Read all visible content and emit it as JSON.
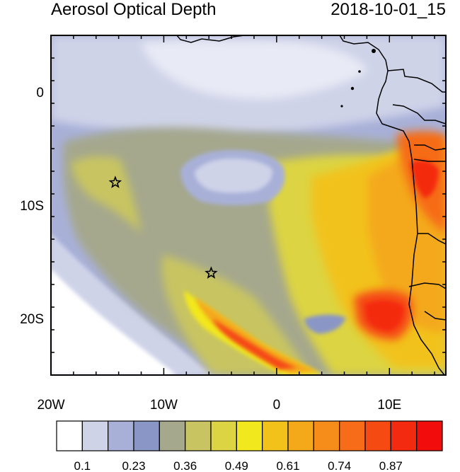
{
  "header": {
    "title": "Aerosol Optical Depth",
    "timestamp": "2018-10-01_15"
  },
  "map": {
    "lon_labels": [
      "20W",
      "10W",
      "0",
      "10E"
    ],
    "lat_labels": [
      "0",
      "10S",
      "20S"
    ],
    "lon_values": [
      -20,
      -10,
      0,
      10
    ],
    "lat_values": [
      0,
      -10,
      -20
    ],
    "lon_range": [
      -20,
      15
    ],
    "lat_range": [
      -25,
      5
    ],
    "markers": [
      {
        "name": "star-marker-1",
        "lon": -14.3,
        "lat": -8.0
      },
      {
        "name": "star-marker-2",
        "lon": -5.8,
        "lat": -16.0
      }
    ]
  },
  "colorbar": {
    "labels": [
      "0.1",
      "0.23",
      "0.36",
      "0.49",
      "0.61",
      "0.74",
      "0.87"
    ],
    "colors": [
      "#ffffff",
      "#cfd3e8",
      "#a8b0d8",
      "#8a96c6",
      "#a5a88d",
      "#c8c462",
      "#dcd442",
      "#f2e81e",
      "#f2c21a",
      "#f4a91a",
      "#f68c1a",
      "#f66c18",
      "#f54a12",
      "#f42a10",
      "#f20c0c"
    ]
  }
}
